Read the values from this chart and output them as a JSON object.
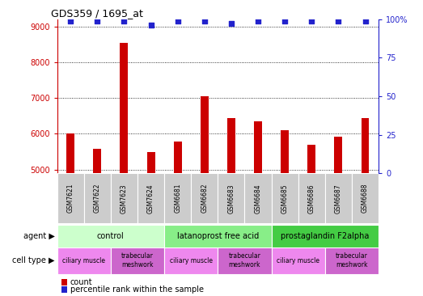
{
  "title": "GDS359 / 1695_at",
  "samples": [
    "GSM7621",
    "GSM7622",
    "GSM7623",
    "GSM7624",
    "GSM6681",
    "GSM6682",
    "GSM6683",
    "GSM6684",
    "GSM6685",
    "GSM6686",
    "GSM6687",
    "GSM6688"
  ],
  "counts": [
    6020,
    5570,
    8540,
    5480,
    5790,
    7040,
    6430,
    6340,
    6090,
    5690,
    5910,
    6440
  ],
  "percentiles": [
    99,
    99,
    99,
    96,
    99,
    99,
    97,
    99,
    99,
    99,
    99,
    99
  ],
  "ylim_left": [
    4900,
    9200
  ],
  "ylim_right": [
    0,
    100
  ],
  "yticks_left": [
    5000,
    6000,
    7000,
    8000,
    9000
  ],
  "yticks_right": [
    0,
    25,
    50,
    75,
    100
  ],
  "bar_color": "#cc0000",
  "dot_color": "#2222cc",
  "agents": [
    {
      "label": "control",
      "start": 0,
      "end": 4,
      "color": "#ccffcc"
    },
    {
      "label": "latanoprost free acid",
      "start": 4,
      "end": 8,
      "color": "#88ee88"
    },
    {
      "label": "prostaglandin F2alpha",
      "start": 8,
      "end": 12,
      "color": "#44cc44"
    }
  ],
  "cell_types": [
    {
      "label": "ciliary muscle",
      "start": 0,
      "end": 2,
      "color": "#ee88ee"
    },
    {
      "label": "trabecular\nmeshwork",
      "start": 2,
      "end": 4,
      "color": "#cc66cc"
    },
    {
      "label": "ciliary muscle",
      "start": 4,
      "end": 6,
      "color": "#ee88ee"
    },
    {
      "label": "trabecular\nmeshwork",
      "start": 6,
      "end": 8,
      "color": "#cc66cc"
    },
    {
      "label": "ciliary muscle",
      "start": 8,
      "end": 10,
      "color": "#ee88ee"
    },
    {
      "label": "trabecular\nmeshwork",
      "start": 10,
      "end": 12,
      "color": "#cc66cc"
    }
  ],
  "background_color": "#ffffff",
  "tick_color_left": "#cc0000",
  "tick_color_right": "#2222cc",
  "sample_box_color": "#cccccc",
  "legend_count_label": "count",
  "legend_percentile_label": "percentile rank within the sample"
}
